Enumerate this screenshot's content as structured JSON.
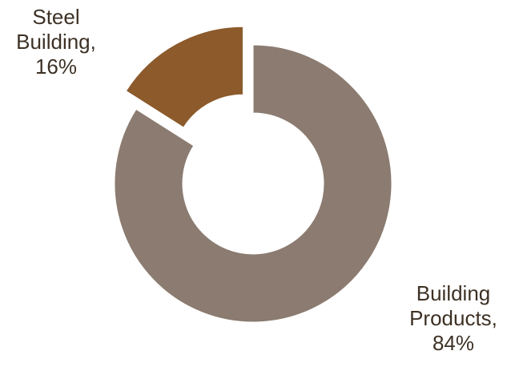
{
  "chart_data": {
    "type": "pie",
    "variant": "donut",
    "title": "",
    "slices": [
      {
        "name": "Building Products",
        "value": 84,
        "label_lines": [
          "Building",
          "Products,",
          "84%"
        ],
        "color": "#8b7b70",
        "exploded": false
      },
      {
        "name": "Steel Building",
        "value": 16,
        "label_lines": [
          "Steel",
          "Building,",
          "16%"
        ],
        "color": "#8c5a2b",
        "exploded": true
      }
    ],
    "legend": "none",
    "data_labels": "outside"
  },
  "colors": {
    "label_text": "#3d3125",
    "background": "#ffffff"
  }
}
